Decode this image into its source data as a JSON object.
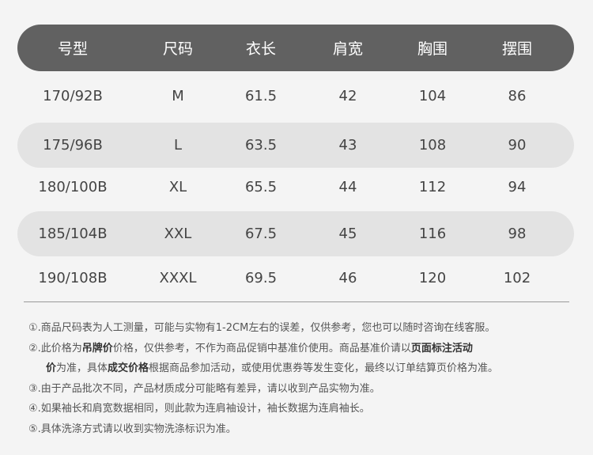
{
  "table": {
    "headers": [
      "号型",
      "尺码",
      "衣长",
      "肩宽",
      "胸围",
      "摆围"
    ],
    "rows": [
      [
        "170/92B",
        "M",
        "61.5",
        "42",
        "104",
        "86"
      ],
      [
        "175/96B",
        "L",
        "63.5",
        "43",
        "108",
        "90"
      ],
      [
        "180/100B",
        "XL",
        "65.5",
        "44",
        "112",
        "94"
      ],
      [
        "185/104B",
        "XXL",
        "67.5",
        "45",
        "116",
        "98"
      ],
      [
        "190/108B",
        "XXXL",
        "69.5",
        "46",
        "120",
        "102"
      ]
    ]
  },
  "notes": {
    "n1": "①.商品尺码表为人工测量，可能与实物有1-2CM左右的误差，仅供参考，您也可以随时咨询在线客服。",
    "n2a": "②.此价格为",
    "n2b": "吊牌价",
    "n2c": "价格，仅供参考，不作为商品促销中基准价使用。商品基准价请以",
    "n2d": "页面标注活动",
    "n2e": "价",
    "n2f": "为准，具体",
    "n2g": "成交价格",
    "n2h": "根据商品参加活动，或使用优惠券等发生变化，最终以订单结算页价格为准。",
    "n3": "③.由于产品批次不同，产品材质成分可能略有差异，请以收到产品实物为准。",
    "n4": "④.如果袖长和肩宽数据相同，则此款为连肩袖设计，袖长数据为连肩袖长。",
    "n5": "⑤.具体洗涤方式请以收到实物洗涤标识为准。"
  }
}
